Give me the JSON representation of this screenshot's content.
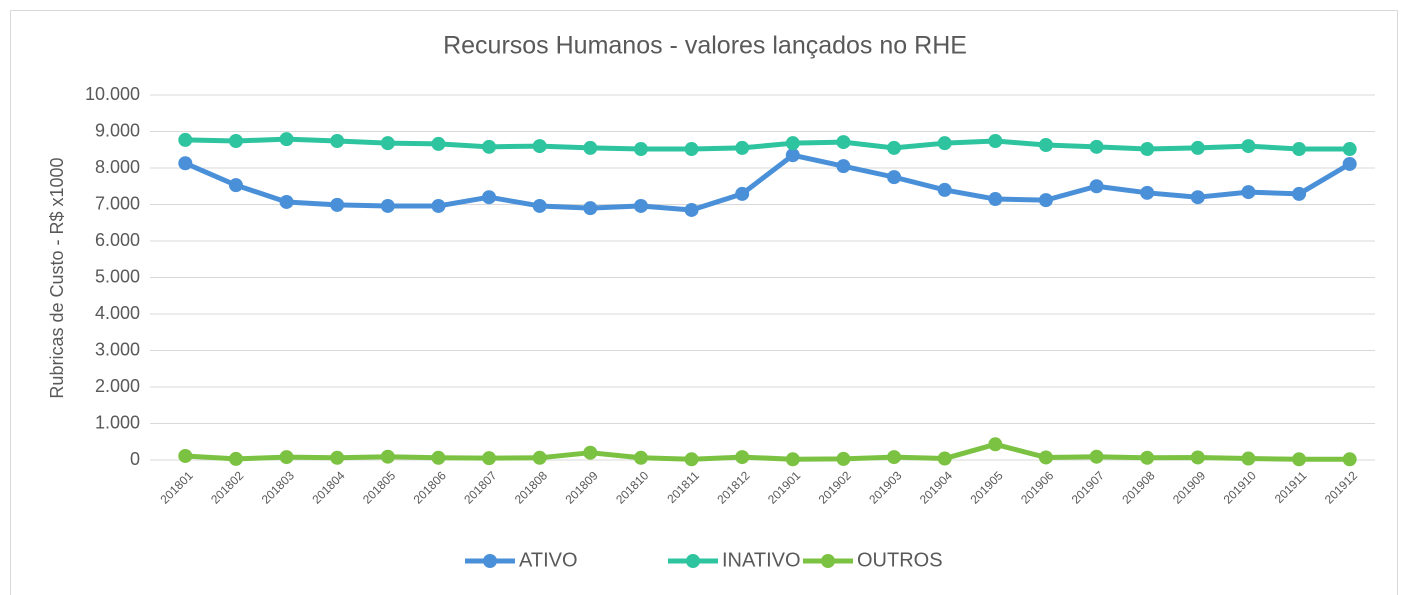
{
  "chart_data": {
    "type": "line",
    "title": "Recursos Humanos - valores lançados no RHE",
    "y_label": "Rubricas de Custo - R$ x1000",
    "categories": [
      "201801",
      "201802",
      "201803",
      "201804",
      "201805",
      "201806",
      "201807",
      "201808",
      "201809",
      "201810",
      "201811",
      "201812",
      "201901",
      "201902",
      "201903",
      "201904",
      "201905",
      "201906",
      "201907",
      "201908",
      "201909",
      "201910",
      "201911",
      "201912"
    ],
    "series": [
      {
        "name": "ATIVO",
        "color": "#4a90d9",
        "values": [
          8130,
          7530,
          7070,
          6990,
          6960,
          6960,
          7200,
          6960,
          6900,
          6960,
          6850,
          7290,
          8350,
          8050,
          7750,
          7400,
          7150,
          7120,
          7500,
          7320,
          7200,
          7340,
          7290,
          8110
        ]
      },
      {
        "name": "INATIVO",
        "color": "#2ec4a0",
        "values": [
          8770,
          8740,
          8790,
          8740,
          8680,
          8660,
          8580,
          8600,
          8550,
          8520,
          8520,
          8550,
          8680,
          8710,
          8550,
          8680,
          8740,
          8630,
          8580,
          8520,
          8550,
          8600,
          8520,
          8520
        ]
      },
      {
        "name": "OUTROS",
        "color": "#7cc242",
        "values": [
          110,
          30,
          80,
          60,
          90,
          60,
          50,
          60,
          200,
          60,
          20,
          80,
          20,
          30,
          80,
          40,
          430,
          70,
          90,
          60,
          70,
          40,
          20,
          20
        ]
      }
    ],
    "ylim": [
      0,
      10000
    ],
    "yticks": [
      0,
      {
        "value": 1000,
        "label": "1.000"
      },
      {
        "value": 2000,
        "label": "2.000"
      },
      {
        "value": 3000,
        "label": "3.000"
      },
      {
        "value": 4000,
        "label": "4.000"
      },
      {
        "value": 5000,
        "label": "5.000"
      },
      {
        "value": 6000,
        "label": "6.000"
      },
      {
        "value": 7000,
        "label": "7.000"
      },
      {
        "value": 8000,
        "label": "8.000"
      },
      {
        "value": 9000,
        "label": "9.000"
      },
      {
        "value": 10000,
        "label": "10.000"
      }
    ],
    "grid": true,
    "legend": "bottom"
  }
}
